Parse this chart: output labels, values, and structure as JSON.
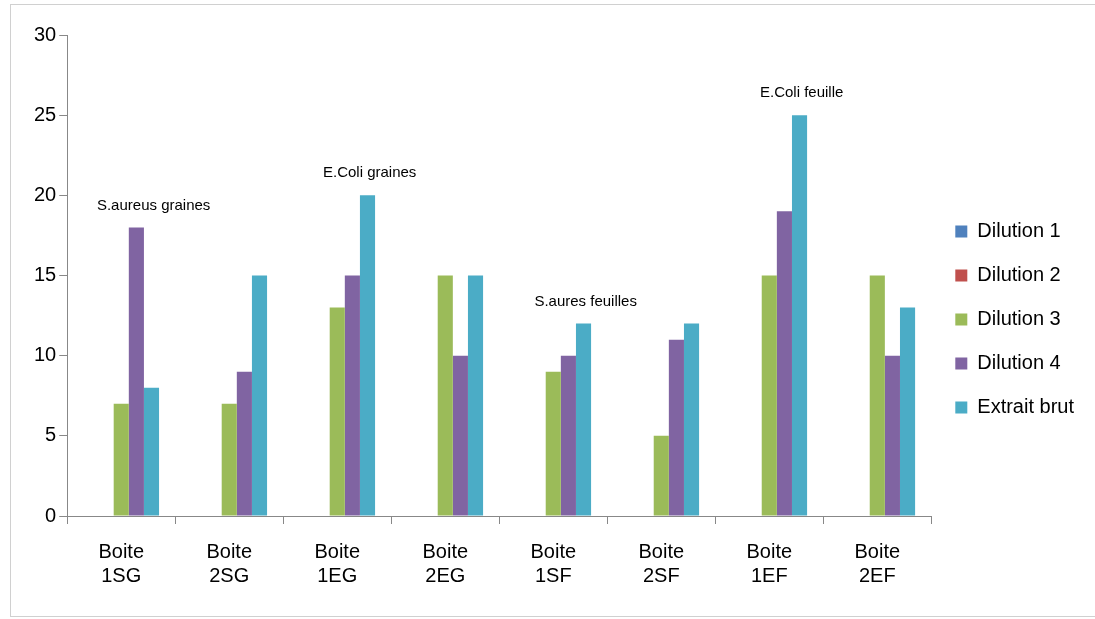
{
  "chart_data": {
    "type": "bar",
    "categories": [
      "Boite 1SG",
      "Boite 2SG",
      "Boite 1EG",
      "Boite 2EG",
      "Boite 1SF",
      "Boite 2SF",
      "Boite 1EF",
      "Boite 2EF"
    ],
    "series": [
      {
        "name": "Dilution 1",
        "color": "#4f81bd",
        "values": [
          0,
          0,
          0,
          0,
          0,
          0,
          0,
          0
        ]
      },
      {
        "name": "Dilution 2",
        "color": "#c0504d",
        "values": [
          0,
          0,
          0,
          0,
          0,
          0,
          0,
          0
        ]
      },
      {
        "name": "Dilution 3",
        "color": "#9bbb59",
        "values": [
          7,
          7,
          13,
          15,
          9,
          5,
          15,
          15
        ]
      },
      {
        "name": "Dilution 4",
        "color": "#8064a2",
        "values": [
          18,
          9,
          15,
          10,
          10,
          11,
          19,
          10
        ]
      },
      {
        "name": "Extrait brut",
        "color": "#4bacc6",
        "values": [
          8,
          15,
          20,
          15,
          12,
          12,
          25,
          13
        ]
      }
    ],
    "ylim": [
      0,
      30
    ],
    "yticks": [
      0,
      5,
      10,
      15,
      20,
      25,
      30
    ],
    "grid": false,
    "legend": "right",
    "annotations": [
      "S.aureus graines",
      "E.Coli graines",
      "S.aures feuilles",
      "E.Coli feuille"
    ]
  }
}
